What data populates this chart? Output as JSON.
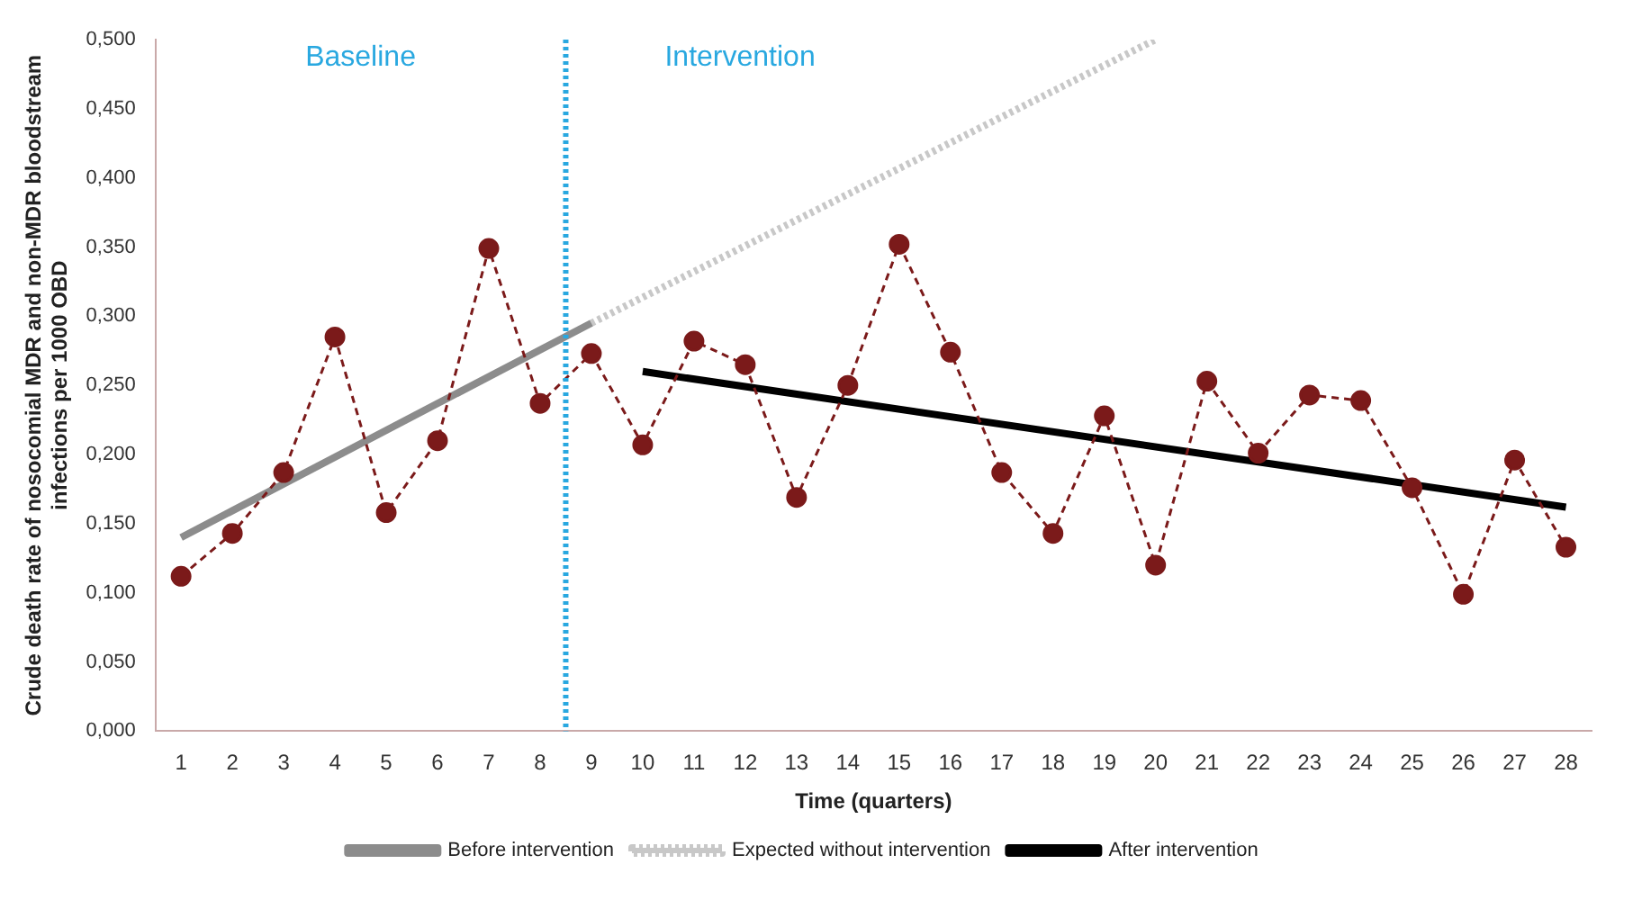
{
  "chart_data": {
    "type": "line",
    "xlabel": "Time (quarters)",
    "ylabel": "Crude death rate of nosocomial MDR and non-MDR bloodstream infections per 1000 OBD",
    "x": [
      1,
      2,
      3,
      4,
      5,
      6,
      7,
      8,
      9,
      10,
      11,
      12,
      13,
      14,
      15,
      16,
      17,
      18,
      19,
      20,
      21,
      22,
      23,
      24,
      25,
      26,
      27,
      28
    ],
    "series": [
      {
        "color": "#7b1a1a",
        "marker": "circle",
        "line_style": "dashed",
        "values": [
          0.112,
          0.143,
          0.187,
          0.285,
          0.158,
          0.21,
          0.349,
          0.237,
          0.273,
          0.207,
          0.282,
          0.265,
          0.169,
          0.25,
          0.352,
          0.274,
          0.187,
          0.143,
          0.228,
          0.12,
          0.253,
          0.201,
          0.243,
          0.239,
          0.176,
          0.099,
          0.196,
          0.133
        ]
      },
      {
        "name": "Before intervention",
        "color": "#8c8c8c",
        "marker": "none",
        "line_style": "solid",
        "x": [
          1,
          9
        ],
        "values": [
          0.14,
          0.295
        ]
      },
      {
        "name": "Expected without intervention",
        "color": "#c8c8c8",
        "marker": "none",
        "line_style": "dotted",
        "x": [
          9,
          20
        ],
        "values": [
          0.295,
          0.5
        ]
      },
      {
        "name": "After intervention",
        "color": "#000000",
        "marker": "none",
        "line_style": "solid",
        "x": [
          10,
          28
        ],
        "values": [
          0.26,
          0.162
        ]
      }
    ],
    "xlim": [
      0.5,
      28.5
    ],
    "xticks": [
      1,
      2,
      3,
      4,
      5,
      6,
      7,
      8,
      9,
      10,
      11,
      12,
      13,
      14,
      15,
      16,
      17,
      18,
      19,
      20,
      21,
      22,
      23,
      24,
      25,
      26,
      27,
      28
    ],
    "ylim": [
      0,
      0.5
    ],
    "yticks": [
      {
        "value": 0,
        "label": "0,000"
      },
      {
        "value": 0.05,
        "label": "0,050"
      },
      {
        "value": 0.1,
        "label": "0,100"
      },
      {
        "value": 0.15,
        "label": "0,150"
      },
      {
        "value": 0.2,
        "label": "0,200"
      },
      {
        "value": 0.25,
        "label": "0,250"
      },
      {
        "value": 0.3,
        "label": "0,300"
      },
      {
        "value": 0.35,
        "label": "0,350"
      },
      {
        "value": 0.4,
        "label": "0,400"
      },
      {
        "value": 0.45,
        "label": "0,450"
      },
      {
        "value": 0.5,
        "label": "0,500"
      }
    ],
    "ref_lines": [
      {
        "axis": "x",
        "value": 8.5,
        "color": "#29a8e0",
        "line_style": "dotted"
      }
    ],
    "annotations": [
      "Baseline",
      "Intervention"
    ],
    "grid": false,
    "legend": "bottom"
  }
}
